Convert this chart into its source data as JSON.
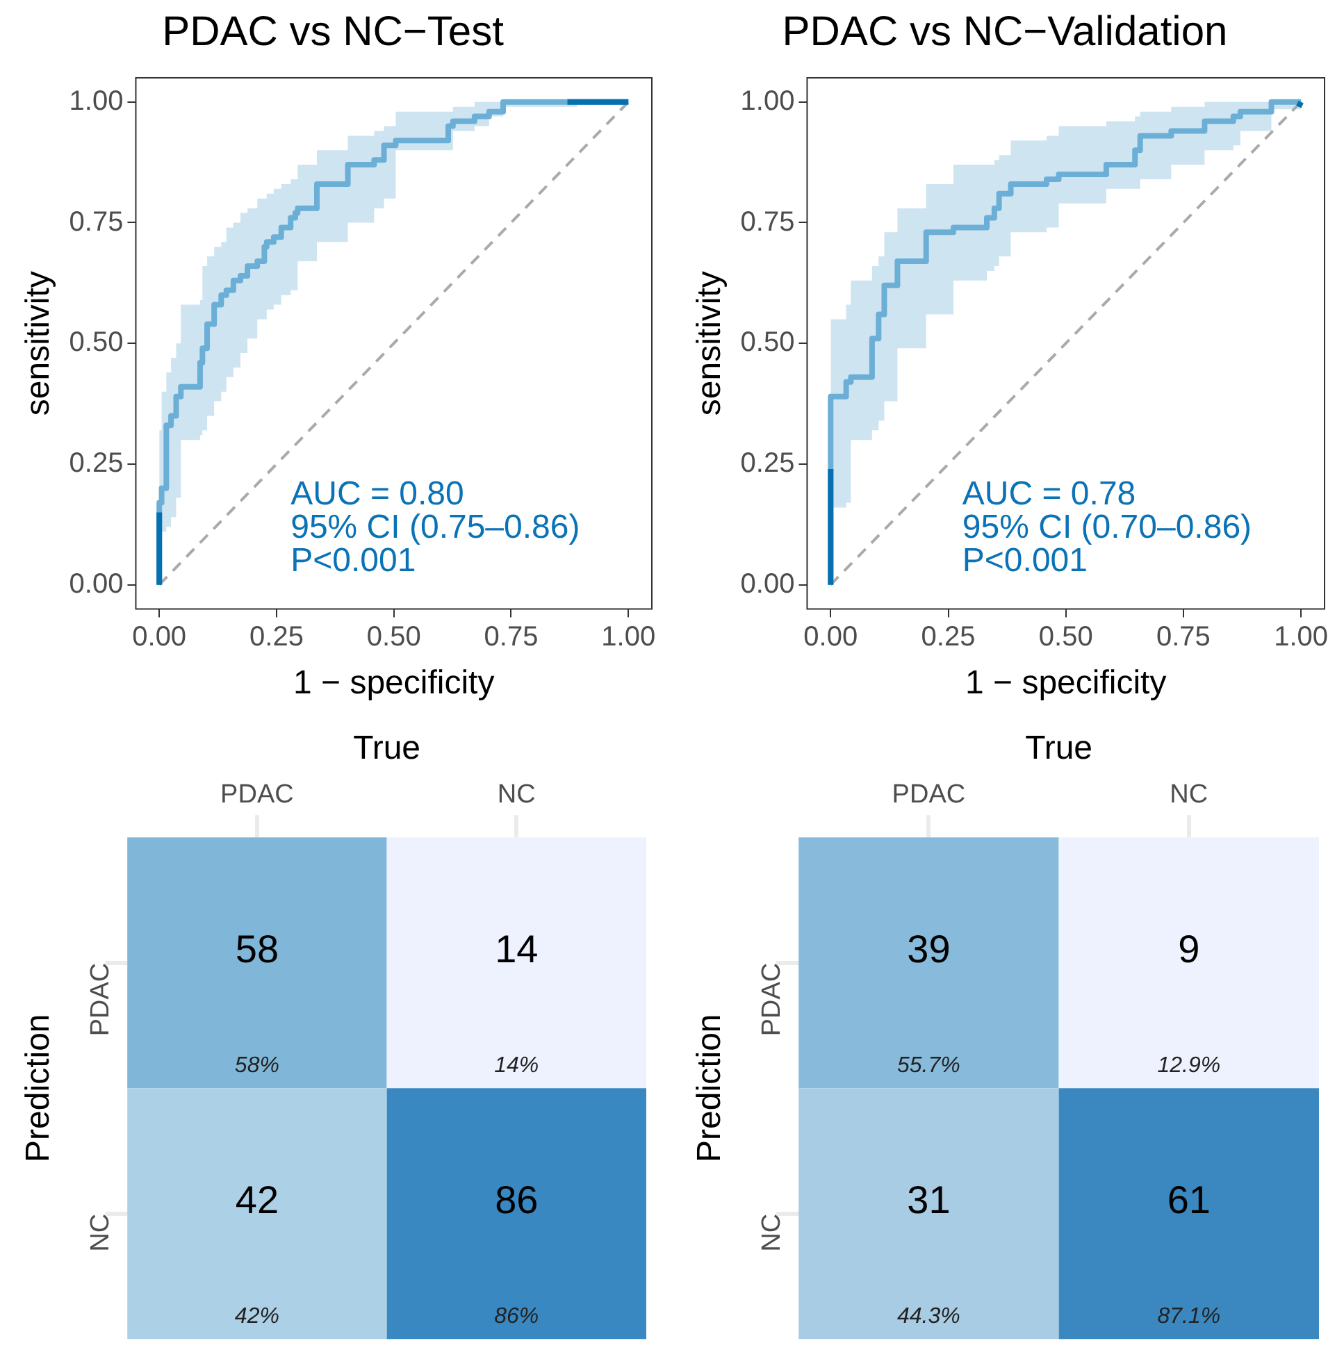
{
  "chart_data": [
    {
      "type": "step",
      "title": "PDAC vs NC−Test",
      "xlabel": "1 − specificity",
      "ylabel": "sensitivity",
      "xlim": [
        -0.05,
        1.05
      ],
      "ylim": [
        -0.05,
        1.05
      ],
      "xticks": [
        {
          "value": 0,
          "label": "0.00"
        },
        {
          "value": 0.25,
          "label": "0.25"
        },
        {
          "value": 0.5,
          "label": "0.50"
        },
        {
          "value": 0.75,
          "label": "0.75"
        },
        {
          "value": 1,
          "label": "1.00"
        }
      ],
      "yticks": [
        {
          "value": 0,
          "label": "0.00"
        },
        {
          "value": 0.25,
          "label": "0.25"
        },
        {
          "value": 0.5,
          "label": "0.50"
        },
        {
          "value": 0.75,
          "label": "0.75"
        },
        {
          "value": 1,
          "label": "1.00"
        }
      ],
      "annotations": [
        "AUC = 0.80",
        "95% CI (0.75–0.86)",
        "P<0.001"
      ],
      "series": [
        {
          "color": "#6baed6",
          "x": [
            0,
            0,
            0.005,
            0.015,
            0.025,
            0.036,
            0.046,
            0.087,
            0.092,
            0.102,
            0.117,
            0.132,
            0.143,
            0.158,
            0.173,
            0.188,
            0.209,
            0.224,
            0.229,
            0.244,
            0.26,
            0.28,
            0.29,
            0.295,
            0.336,
            0.402,
            0.458,
            0.479,
            0.504,
            0.616,
            0.626,
            0.672,
            0.703,
            0.733,
            0.891,
            1
          ],
          "values": [
            0,
            0.15,
            0.17,
            0.2,
            0.33,
            0.35,
            0.39,
            0.41,
            0.46,
            0.49,
            0.54,
            0.58,
            0.6,
            0.61,
            0.63,
            0.64,
            0.66,
            0.67,
            0.7,
            0.71,
            0.72,
            0.74,
            0.76,
            0.77,
            0.78,
            0.83,
            0.87,
            0.88,
            0.91,
            0.92,
            0.95,
            0.96,
            0.97,
            0.98,
            1,
            1
          ],
          "lower": [
            0,
            0.1,
            0.1,
            0.11,
            0.12,
            0.14,
            0.18,
            0.3,
            0.31,
            0.32,
            0.35,
            0.38,
            0.4,
            0.43,
            0.45,
            0.48,
            0.51,
            0.55,
            0.55,
            0.57,
            0.58,
            0.6,
            0.61,
            0.61,
            0.67,
            0.71,
            0.75,
            0.78,
            0.8,
            0.9,
            0.9,
            0.94,
            0.95,
            0.97,
            0.99,
            1
          ],
          "upper": [
            0.1,
            0.3,
            0.32,
            0.4,
            0.44,
            0.47,
            0.5,
            0.58,
            0.59,
            0.66,
            0.68,
            0.7,
            0.71,
            0.74,
            0.75,
            0.77,
            0.78,
            0.8,
            0.8,
            0.81,
            0.82,
            0.83,
            0.84,
            0.84,
            0.87,
            0.9,
            0.93,
            0.94,
            0.95,
            0.98,
            0.98,
            0.99,
            1,
            1,
            1,
            1
          ]
        },
        {
          "type": "line",
          "color": "#0570b0",
          "x": [
            0,
            0
          ],
          "values": [
            0,
            0.15
          ]
        },
        {
          "type": "line",
          "color": "#0570b0",
          "x": [
            0.87,
            1
          ],
          "values": [
            1,
            1
          ]
        },
        {
          "type": "line",
          "color": "#aaaaaa",
          "line_style": "dashed",
          "x": [
            0,
            1
          ],
          "values": [
            0,
            1
          ]
        }
      ]
    },
    {
      "type": "step",
      "title": "PDAC vs NC−Validation",
      "xlabel": "1 − specificity",
      "ylabel": "sensitivity",
      "xlim": [
        -0.05,
        1.05
      ],
      "ylim": [
        -0.05,
        1.05
      ],
      "xticks": [
        {
          "value": 0,
          "label": "0.00"
        },
        {
          "value": 0.25,
          "label": "0.25"
        },
        {
          "value": 0.5,
          "label": "0.50"
        },
        {
          "value": 0.75,
          "label": "0.75"
        },
        {
          "value": 1,
          "label": "1.00"
        }
      ],
      "yticks": [
        {
          "value": 0,
          "label": "0.00"
        },
        {
          "value": 0.25,
          "label": "0.25"
        },
        {
          "value": 0.5,
          "label": "0.50"
        },
        {
          "value": 0.75,
          "label": "0.75"
        },
        {
          "value": 1,
          "label": "1.00"
        }
      ],
      "annotations": [
        "AUC = 0.78",
        "95% CI (0.70–0.86)",
        "P<0.001"
      ],
      "series": [
        {
          "color": "#6baed6",
          "x": [
            0,
            0,
            0.033,
            0.043,
            0.088,
            0.102,
            0.114,
            0.142,
            0.203,
            0.261,
            0.332,
            0.348,
            0.358,
            0.383,
            0.459,
            0.485,
            0.586,
            0.647,
            0.658,
            0.724,
            0.795,
            0.856,
            0.871,
            0.937,
            1
          ],
          "values": [
            0,
            0.24,
            0.39,
            0.42,
            0.43,
            0.51,
            0.56,
            0.62,
            0.67,
            0.73,
            0.74,
            0.76,
            0.78,
            0.81,
            0.83,
            0.84,
            0.85,
            0.87,
            0.9,
            0.93,
            0.94,
            0.96,
            0.97,
            0.98,
            1
          ],
          "lower": [
            0,
            0.14,
            0.16,
            0.17,
            0.3,
            0.32,
            0.34,
            0.38,
            0.49,
            0.56,
            0.63,
            0.65,
            0.66,
            0.68,
            0.73,
            0.74,
            0.79,
            0.82,
            0.82,
            0.84,
            0.87,
            0.9,
            0.91,
            0.94,
            0.985
          ],
          "upper": [
            0.14,
            0.45,
            0.55,
            0.58,
            0.63,
            0.66,
            0.68,
            0.73,
            0.78,
            0.83,
            0.87,
            0.87,
            0.88,
            0.89,
            0.92,
            0.93,
            0.95,
            0.96,
            0.97,
            0.98,
            0.99,
            1,
            1,
            1,
            1
          ]
        },
        {
          "type": "line",
          "color": "#0570b0",
          "x": [
            0,
            0
          ],
          "values": [
            0,
            0.24
          ]
        },
        {
          "type": "line",
          "color": "#0570b0",
          "x": [
            0.995,
            1
          ],
          "values": [
            0.99,
            1
          ]
        },
        {
          "type": "line",
          "color": "#aaaaaa",
          "line_style": "dashed",
          "x": [
            0,
            1
          ],
          "values": [
            0,
            1
          ]
        }
      ]
    },
    {
      "type": "heatmap",
      "xlabel": "True",
      "ylabel": "Prediction",
      "categories": [
        "PDAC",
        "NC"
      ],
      "y_categories": [
        "PDAC",
        "NC"
      ],
      "cells": [
        [
          58,
          14
        ],
        [
          42,
          86
        ]
      ],
      "annotations": [
        "58%",
        "14%",
        "42%",
        "86%"
      ],
      "colors": [
        [
          "#80b6d8",
          "#eef2fe"
        ],
        [
          "#acd0e5",
          "#3a88c1"
        ]
      ],
      "data_labels": true
    },
    {
      "type": "heatmap",
      "xlabel": "True",
      "ylabel": "Prediction",
      "categories": [
        "PDAC",
        "NC"
      ],
      "y_categories": [
        "PDAC",
        "NC"
      ],
      "cells": [
        [
          39,
          9
        ],
        [
          31,
          61
        ]
      ],
      "annotations": [
        "55.7%",
        "12.9%",
        "44.3%",
        "87.1%"
      ],
      "colors": [
        [
          "#88bbdb",
          "#eef2fe"
        ],
        [
          "#a8cce3",
          "#3b88c1"
        ]
      ],
      "data_labels": true
    }
  ]
}
